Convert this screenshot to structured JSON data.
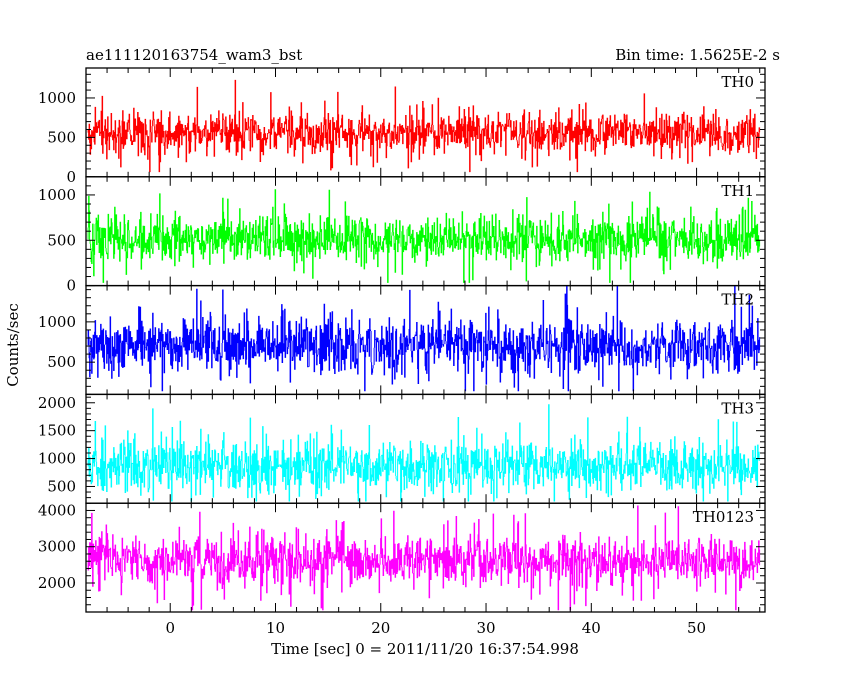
{
  "chart_data": {
    "type": "line",
    "title": "ae111120163754_wam3_bst",
    "subtitle": "Bin time: 1.5625E-2 s",
    "xlabel": "Time [sec] 0 = 2011/11/20 16:37:54.998",
    "ylabel": "Counts/sec",
    "xlim": [
      -8,
      56.5
    ],
    "x_ticks": [
      0,
      10,
      20,
      30,
      40,
      50
    ],
    "x_tick_labels": [
      "0",
      "10",
      "20",
      "30",
      "40",
      "50"
    ],
    "bin_time": 0.015625,
    "grid": false,
    "panels": [
      {
        "name": "TH0",
        "color": "#ff0000",
        "ylim": [
          0,
          1380
        ],
        "y_ticks": [
          0,
          500,
          1000
        ],
        "y_tick_labels": [
          "0",
          "500",
          "1000"
        ],
        "x_range": [
          -7.8,
          56.0
        ],
        "mean": 560,
        "spread": 155,
        "min": 60,
        "max": 1380
      },
      {
        "name": "TH1",
        "color": "#00ff00",
        "ylim": [
          0,
          1200
        ],
        "y_ticks": [
          0,
          500,
          1000
        ],
        "y_tick_labels": [
          "0",
          "500",
          "1000"
        ],
        "x_range": [
          -7.8,
          56.0
        ],
        "mean": 510,
        "spread": 150,
        "min": 30,
        "max": 1200
      },
      {
        "name": "TH2",
        "color": "#0000ff",
        "ylim": [
          100,
          1450
        ],
        "y_ticks": [
          500,
          1000
        ],
        "y_tick_labels": [
          "500",
          "1000"
        ],
        "x_range": [
          -7.8,
          56.0
        ],
        "mean": 710,
        "spread": 190,
        "min": 140,
        "max": 1450
      },
      {
        "name": "TH3",
        "color": "#00ffff",
        "ylim": [
          200,
          2150
        ],
        "y_ticks": [
          500,
          1000,
          1500,
          2000
        ],
        "y_tick_labels": [
          "500",
          "1000",
          "1500",
          "2000"
        ],
        "x_range": [
          -7.8,
          56.0
        ],
        "mean": 860,
        "spread": 260,
        "min": 230,
        "max": 2150
      },
      {
        "name": "TH0123",
        "color": "#ff00ff",
        "ylim": [
          1200,
          4200
        ],
        "y_ticks": [
          2000,
          3000,
          4000
        ],
        "y_tick_labels": [
          "2000",
          "3000",
          "4000"
        ],
        "x_range": [
          -7.8,
          56.0
        ],
        "mean": 2620,
        "spread": 380,
        "min": 1250,
        "max": 4200
      }
    ]
  }
}
